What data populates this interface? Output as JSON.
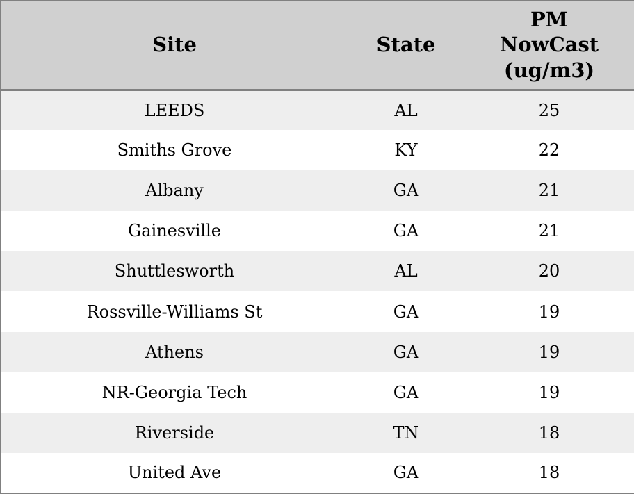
{
  "colors": {
    "border": "#808080",
    "header_bg": "#d0d0d0",
    "row_stripe_bg": "#eeeeee",
    "row_plain_bg": "#ffffff",
    "text": "#000000"
  },
  "chart_data": {
    "type": "table",
    "title": "",
    "columns": [
      "Site",
      "State",
      "PM NowCast (ug/m3)"
    ],
    "rows": [
      [
        "LEEDS",
        "AL",
        "25"
      ],
      [
        "Smiths Grove",
        "KY",
        "22"
      ],
      [
        "Albany",
        "GA",
        "21"
      ],
      [
        "Gainesville",
        "GA",
        "21"
      ],
      [
        "Shuttlesworth",
        "AL",
        "20"
      ],
      [
        "Rossville-Williams St",
        "GA",
        "19"
      ],
      [
        "Athens",
        "GA",
        "19"
      ],
      [
        "NR-Georgia Tech",
        "GA",
        "19"
      ],
      [
        "Riverside",
        "TN",
        "18"
      ],
      [
        "United Ave",
        "GA",
        "18"
      ]
    ]
  }
}
